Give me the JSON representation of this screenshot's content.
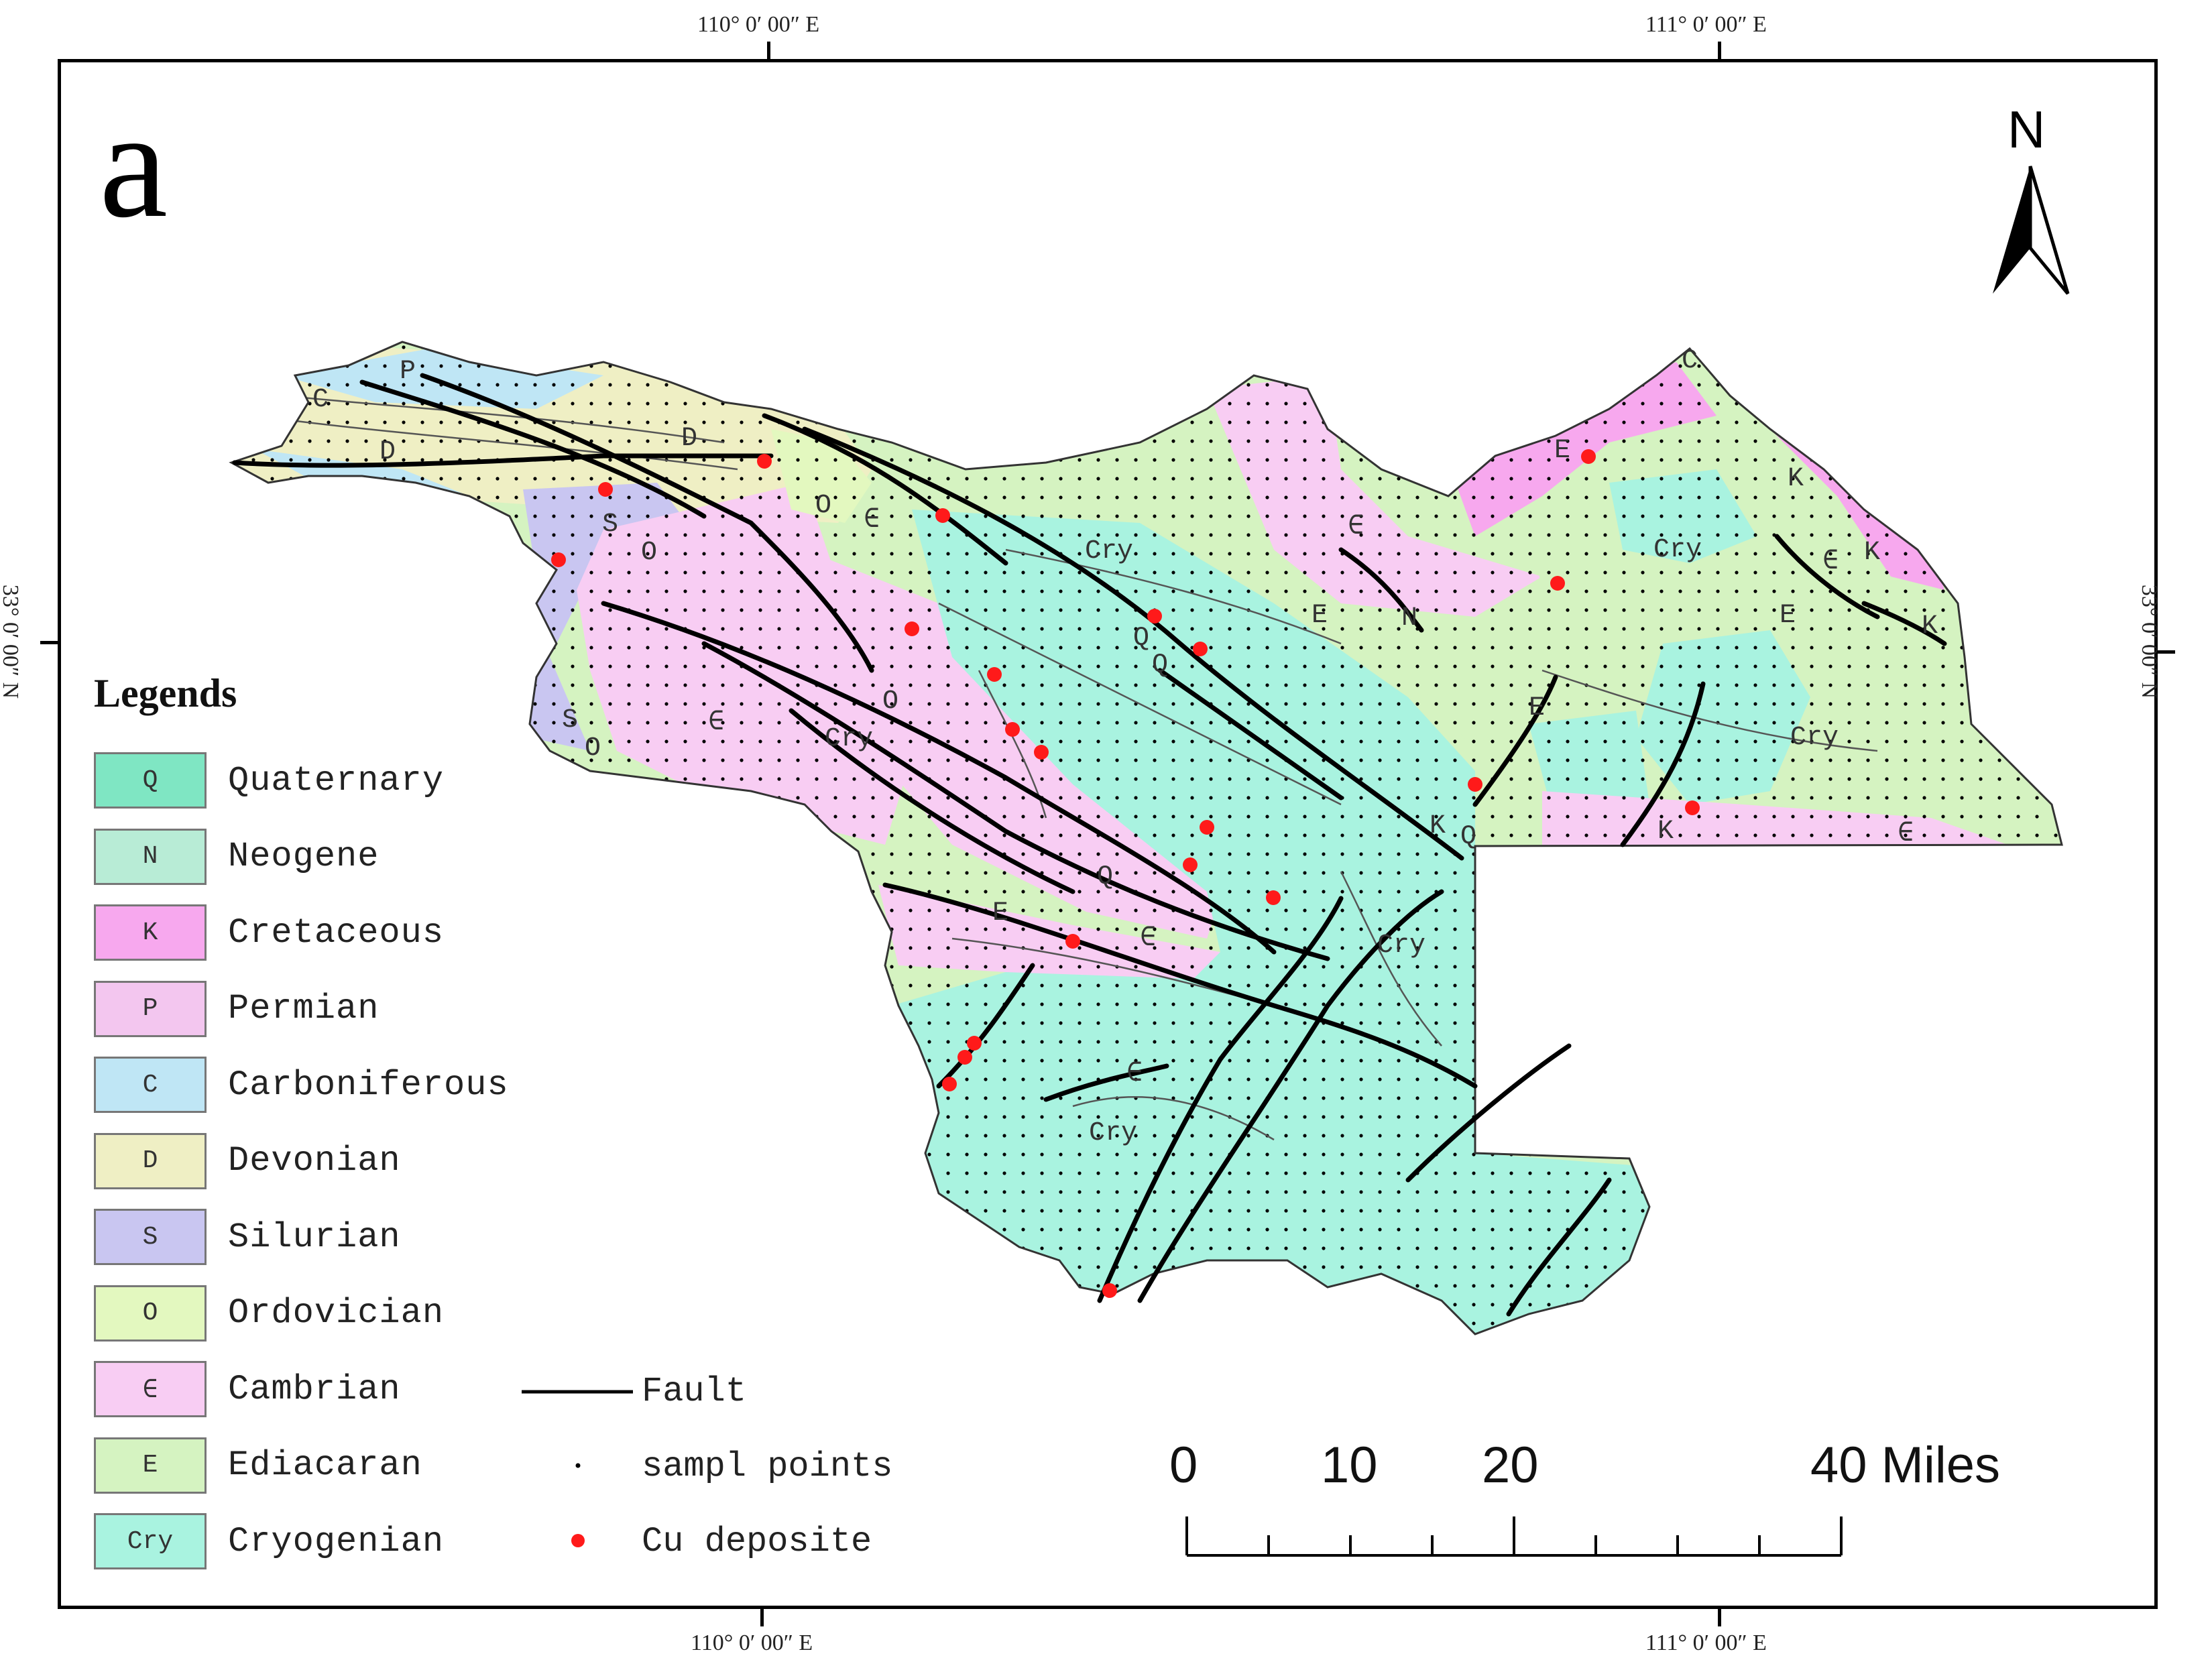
{
  "panel_label": "a",
  "coordinates": {
    "top_left": "110° 0′ 00″ E",
    "top_right": "111° 0′ 00″ E",
    "bottom_left": "110° 0′ 00″ E",
    "bottom_right": "111° 0′ 00″ E",
    "left": "33° 0′ 00″ N",
    "right": "33° 0′ 00″ N"
  },
  "north_arrow": {
    "label": "N",
    "icon": "north-arrow-icon"
  },
  "legend": {
    "title": "Legends",
    "units": [
      {
        "code": "Q",
        "name": "Quaternary",
        "color": "#7fe6c3"
      },
      {
        "code": "N",
        "name": "Neogene",
        "color": "#b8ecd6"
      },
      {
        "code": "K",
        "name": "Cretaceous",
        "color": "#f7a8ee"
      },
      {
        "code": "P",
        "name": "Permian",
        "color": "#f3c6ef"
      },
      {
        "code": "C",
        "name": "Carboniferous",
        "color": "#bfe6f5"
      },
      {
        "code": "D",
        "name": "Devonian",
        "color": "#efefc4"
      },
      {
        "code": "S",
        "name": "Silurian",
        "color": "#c9c6f1"
      },
      {
        "code": "O",
        "name": "Ordovician",
        "color": "#e3f8bf"
      },
      {
        "code": "∈",
        "name": "Cambrian",
        "color": "#f8cdf3"
      },
      {
        "code": "E",
        "name": "Ediacaran",
        "color": "#d5f3c1"
      },
      {
        "code": "Cry",
        "name": "Cryogenian",
        "color": "#a9f3e0"
      }
    ],
    "symbols": [
      {
        "name": "Fault",
        "kind": "line",
        "color": "#000000"
      },
      {
        "name": "sampl points",
        "kind": "dot",
        "color": "#000000"
      },
      {
        "name": "Cu deposite",
        "kind": "dot",
        "color": "#ff1a1a"
      }
    ]
  },
  "scale_bar": {
    "labels": [
      "0",
      "10",
      "20",
      "40 Miles"
    ],
    "values_miles": [
      0,
      10,
      20,
      40
    ]
  },
  "map_labels": [
    "C",
    "P",
    "D",
    "D",
    "O",
    "S",
    "O",
    "S",
    "O",
    "∈",
    "∈",
    "O",
    "Cry",
    "Q",
    "Q",
    "E",
    "Cry",
    "E",
    "N",
    "∈",
    "E",
    "Cry",
    "E",
    "K",
    "K",
    "K",
    "∈",
    "K",
    "Q",
    "Cry",
    "K",
    "∈",
    "E",
    "∈",
    "Q",
    "∈",
    "Cry",
    "C"
  ],
  "colors": {
    "cryogenian_main": "#a9f3e0",
    "ediacaran_main": "#d5f3c1",
    "cambrian_main": "#f8cdf3",
    "devonian_main": "#efefc4",
    "fault": "#000000",
    "cu_deposit": "#ff1a1a"
  }
}
